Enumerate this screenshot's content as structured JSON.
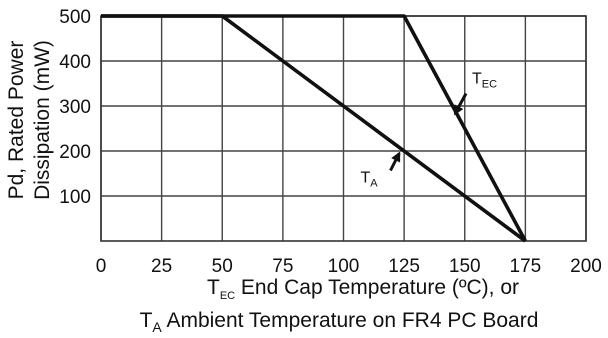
{
  "chart_data": {
    "type": "line",
    "xlabel_line1": {
      "prefix": "T",
      "sub": "EC",
      "text": " End Cap Temperature (ºC), or"
    },
    "xlabel_line2": {
      "prefix": "T",
      "sub": "A",
      "text": " Ambient Temperature on FR4 PC Board"
    },
    "ylabel_line1": "Pd, Rated Power",
    "ylabel_line2": "Dissipation (mW)",
    "xlim": [
      0,
      200
    ],
    "ylim": [
      0,
      500
    ],
    "x_ticks": [
      0,
      25,
      50,
      75,
      100,
      125,
      150,
      175,
      200
    ],
    "y_ticks": [
      100,
      200,
      300,
      400,
      500
    ],
    "grid": true,
    "series": [
      {
        "name": "TEC",
        "label_prefix": "T",
        "label_sub": "EC",
        "x": [
          0,
          125,
          175
        ],
        "y": [
          500,
          500,
          0
        ]
      },
      {
        "name": "TA",
        "label_prefix": "T",
        "label_sub": "A",
        "x": [
          0,
          50,
          175
        ],
        "y": [
          500,
          500,
          0
        ]
      }
    ],
    "annotations": [
      {
        "series": "TEC",
        "label_at": [
          153,
          350
        ],
        "arrow_to": [
          146,
          283
        ]
      },
      {
        "series": "TA",
        "label_at": [
          107,
          130
        ],
        "arrow_to": [
          123,
          195
        ]
      }
    ]
  }
}
